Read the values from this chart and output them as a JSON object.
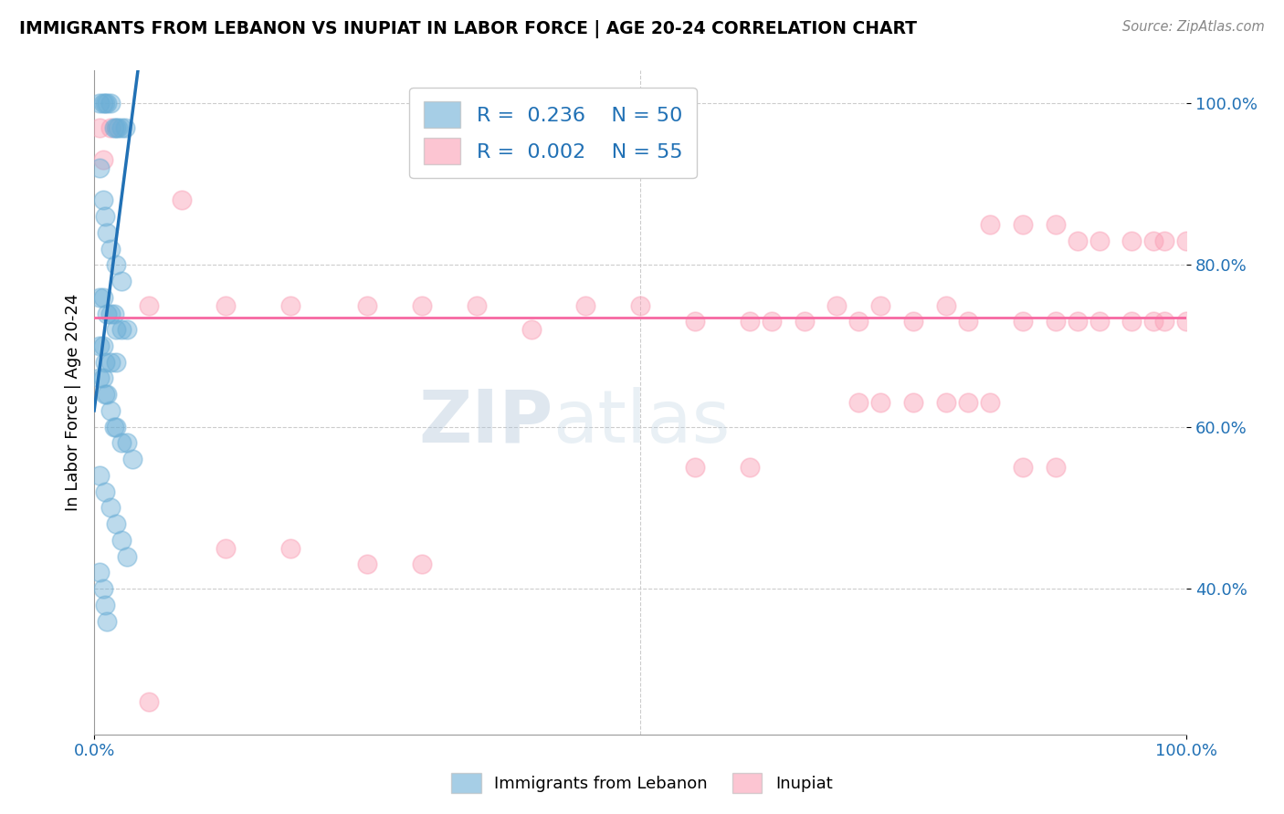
{
  "title": "IMMIGRANTS FROM LEBANON VS INUPIAT IN LABOR FORCE | AGE 20-24 CORRELATION CHART",
  "source": "Source: ZipAtlas.com",
  "ylabel": "In Labor Force | Age 20-24",
  "xlim": [
    0.0,
    1.0
  ],
  "ylim": [
    0.22,
    1.04
  ],
  "x_tick_labels": [
    "0.0%",
    "100.0%"
  ],
  "y_tick_labels": [
    "40.0%",
    "60.0%",
    "80.0%",
    "100.0%"
  ],
  "y_tick_positions": [
    0.4,
    0.6,
    0.8,
    1.0
  ],
  "legend_r1": "R =  0.236",
  "legend_n1": "N = 50",
  "legend_r2": "R =  0.002",
  "legend_n2": "N = 55",
  "blue_color": "#6baed6",
  "pink_color": "#fa9fb5",
  "line_blue": "#2171b5",
  "line_pink": "#f768a1",
  "tick_color": "#2171b5",
  "watermark_zip": "ZIP",
  "watermark_atlas": "atlas",
  "blue_scatter_x": [
    0.005,
    0.008,
    0.01,
    0.012,
    0.015,
    0.018,
    0.02,
    0.022,
    0.025,
    0.028,
    0.005,
    0.008,
    0.01,
    0.012,
    0.015,
    0.02,
    0.025,
    0.005,
    0.008,
    0.012,
    0.015,
    0.018,
    0.02,
    0.025,
    0.03,
    0.005,
    0.008,
    0.01,
    0.015,
    0.02,
    0.005,
    0.008,
    0.01,
    0.012,
    0.015,
    0.018,
    0.02,
    0.025,
    0.03,
    0.035,
    0.005,
    0.01,
    0.015,
    0.02,
    0.025,
    0.03,
    0.005,
    0.008,
    0.01,
    0.012
  ],
  "blue_scatter_y": [
    1.0,
    1.0,
    1.0,
    1.0,
    1.0,
    0.97,
    0.97,
    0.97,
    0.97,
    0.97,
    0.92,
    0.88,
    0.86,
    0.84,
    0.82,
    0.8,
    0.78,
    0.76,
    0.76,
    0.74,
    0.74,
    0.74,
    0.72,
    0.72,
    0.72,
    0.7,
    0.7,
    0.68,
    0.68,
    0.68,
    0.66,
    0.66,
    0.64,
    0.64,
    0.62,
    0.6,
    0.6,
    0.58,
    0.58,
    0.56,
    0.54,
    0.52,
    0.5,
    0.48,
    0.46,
    0.44,
    0.42,
    0.4,
    0.38,
    0.36
  ],
  "pink_scatter_x": [
    0.005,
    0.008,
    0.015,
    0.05,
    0.08,
    0.12,
    0.18,
    0.25,
    0.3,
    0.35,
    0.4,
    0.45,
    0.5,
    0.55,
    0.6,
    0.62,
    0.65,
    0.68,
    0.7,
    0.72,
    0.75,
    0.78,
    0.8,
    0.82,
    0.85,
    0.88,
    0.9,
    0.92,
    0.95,
    0.97,
    0.98,
    1.0,
    0.85,
    0.88,
    0.9,
    0.92,
    0.95,
    0.97,
    0.98,
    1.0,
    0.7,
    0.72,
    0.75,
    0.78,
    0.8,
    0.82,
    0.85,
    0.88,
    0.55,
    0.6,
    0.12,
    0.18,
    0.25,
    0.3,
    0.05
  ],
  "pink_scatter_y": [
    0.97,
    0.93,
    0.97,
    0.75,
    0.88,
    0.75,
    0.75,
    0.75,
    0.75,
    0.75,
    0.72,
    0.75,
    0.75,
    0.73,
    0.73,
    0.73,
    0.73,
    0.75,
    0.73,
    0.75,
    0.73,
    0.75,
    0.73,
    0.85,
    0.85,
    0.85,
    0.83,
    0.83,
    0.83,
    0.83,
    0.83,
    0.83,
    0.73,
    0.73,
    0.73,
    0.73,
    0.73,
    0.73,
    0.73,
    0.73,
    0.63,
    0.63,
    0.63,
    0.63,
    0.63,
    0.63,
    0.55,
    0.55,
    0.55,
    0.55,
    0.45,
    0.45,
    0.43,
    0.43,
    0.26
  ],
  "blue_line_x0": 0.0,
  "blue_line_y0": 0.62,
  "blue_line_x1": 0.04,
  "blue_line_y1": 1.04,
  "pink_line_y": 0.735
}
